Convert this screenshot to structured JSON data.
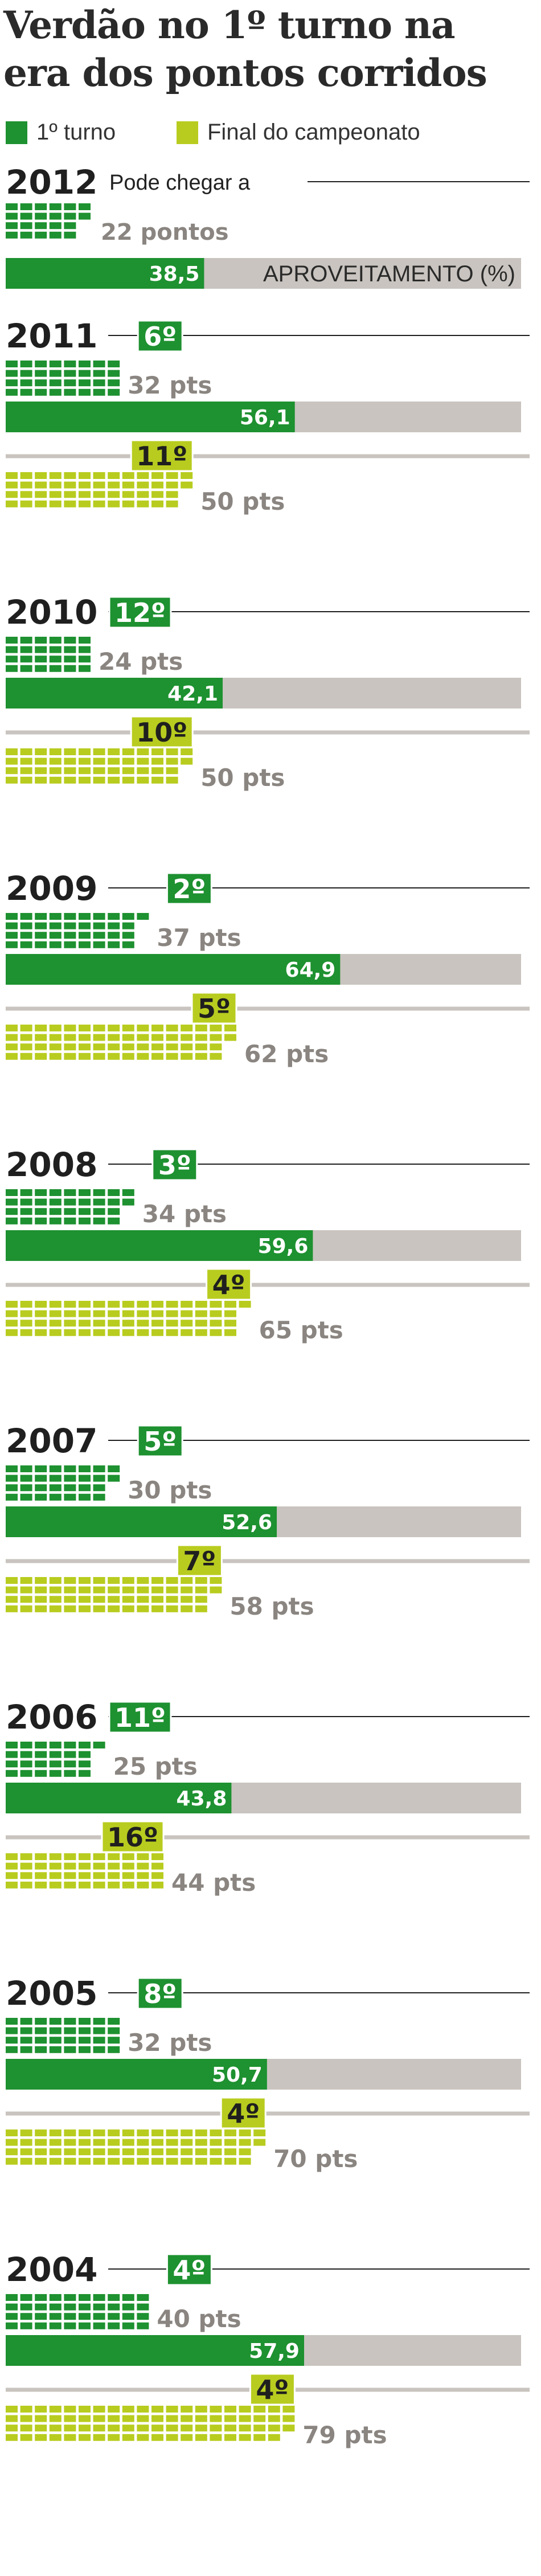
{
  "title": {
    "line1": "Verdão no 1º turno na",
    "line2": "era dos pontos corridos"
  },
  "legend": [
    {
      "label": "1º turno",
      "color": "#1e9130"
    },
    {
      "label": "Final do campeonato",
      "color": "#b8cc1f"
    }
  ],
  "colors": {
    "first_turn": "#1e9130",
    "final": "#b8cc1f",
    "bar_background": "#c9c4bf",
    "points_text": "#8a8580"
  },
  "chart_data": {
    "type": "bar",
    "title": "Verdão no 1º turno na era dos pontos corridos",
    "series": [
      {
        "name": "1º turno",
        "unit": "pts"
      },
      {
        "name": "Final do campeonato",
        "unit": "pts"
      }
    ],
    "seasons": [
      {
        "year": "2012",
        "note": "Pode chegar a",
        "first_turn_points": 22,
        "first_turn_points_label": "22 pontos",
        "aproveitamento": 38.5,
        "aproveitamento_label": "38,5",
        "aproveitamento_title": "APROVEITAMENTO (%)"
      },
      {
        "year": "2011",
        "first_turn_rank": "6º",
        "first_turn_points": 32,
        "first_turn_points_label": "32 pts",
        "aproveitamento": 56.1,
        "aproveitamento_label": "56,1",
        "final_rank": "11º",
        "final_points": 50,
        "final_points_label": "50 pts"
      },
      {
        "year": "2010",
        "first_turn_rank": "12º",
        "first_turn_points": 24,
        "first_turn_points_label": "24 pts",
        "aproveitamento": 42.1,
        "aproveitamento_label": "42,1",
        "final_rank": "10º",
        "final_points": 50,
        "final_points_label": "50 pts"
      },
      {
        "year": "2009",
        "first_turn_rank": "2º",
        "first_turn_points": 37,
        "first_turn_points_label": "37 pts",
        "aproveitamento": 64.9,
        "aproveitamento_label": "64,9",
        "final_rank": "5º",
        "final_points": 62,
        "final_points_label": "62 pts"
      },
      {
        "year": "2008",
        "first_turn_rank": "3º",
        "first_turn_points": 34,
        "first_turn_points_label": "34 pts",
        "aproveitamento": 59.6,
        "aproveitamento_label": "59,6",
        "final_rank": "4º",
        "final_points": 65,
        "final_points_label": "65 pts"
      },
      {
        "year": "2007",
        "first_turn_rank": "5º",
        "first_turn_points": 30,
        "first_turn_points_label": "30 pts",
        "aproveitamento": 52.6,
        "aproveitamento_label": "52,6",
        "final_rank": "7º",
        "final_points": 58,
        "final_points_label": "58 pts"
      },
      {
        "year": "2006",
        "first_turn_rank": "11º",
        "first_turn_points": 25,
        "first_turn_points_label": "25 pts",
        "aproveitamento": 43.8,
        "aproveitamento_label": "43,8",
        "final_rank": "16º",
        "final_points": 44,
        "final_points_label": "44 pts"
      },
      {
        "year": "2005",
        "first_turn_rank": "8º",
        "first_turn_points": 32,
        "first_turn_points_label": "32 pts",
        "aproveitamento": 50.7,
        "aproveitamento_label": "50,7",
        "final_rank": "4º",
        "final_points": 70,
        "final_points_label": "70 pts"
      },
      {
        "year": "2004",
        "first_turn_rank": "4º",
        "first_turn_points": 40,
        "first_turn_points_label": "40 pts",
        "aproveitamento": 57.9,
        "aproveitamento_label": "57,9",
        "final_rank": "4º",
        "final_points": 79,
        "final_points_label": "79 pts"
      }
    ]
  }
}
